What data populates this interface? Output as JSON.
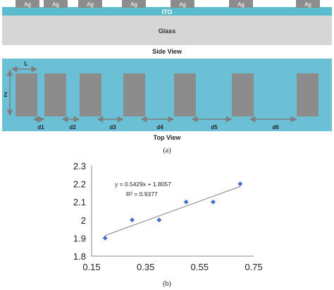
{
  "side_view": {
    "electrode_label": "Ag",
    "ito_label": "ITO",
    "glass_label": "Glass",
    "caption": "Side View",
    "colors": {
      "ito": "#5bbccd",
      "glass": "#d6d6d6",
      "electrode": "#8c8c8c"
    }
  },
  "top_view": {
    "width_label": "L",
    "height_label": "Z",
    "gap_labels": [
      "d1",
      "d2",
      "d3",
      "d4",
      "d5",
      "d6"
    ],
    "caption": "Top View",
    "colors": {
      "background": "#6cc0d6",
      "electrode": "#8c8c8c",
      "arrow": "#7f7f7f"
    }
  },
  "panel_a_label": "(a)",
  "panel_b_label": "(b)",
  "chart_data": {
    "type": "scatter",
    "title": "",
    "xlabel": "",
    "ylabel": "",
    "xlim": [
      0.15,
      0.75
    ],
    "ylim": [
      1.8,
      2.3
    ],
    "xticks": [
      "0.15",
      "0.35",
      "0.55",
      "0.75"
    ],
    "yticks": [
      "1.8",
      "1.9",
      "2",
      "2.1",
      "2.2",
      "2.3"
    ],
    "grid": false,
    "legend": "none",
    "series": [
      {
        "marker": "diamond",
        "color": "#4472c4",
        "x": [
          0.2,
          0.3,
          0.4,
          0.5,
          0.6,
          0.7
        ],
        "y": [
          1.9,
          2.0,
          2.0,
          2.1,
          2.1,
          2.2
        ]
      }
    ],
    "trendline": {
      "slope": 0.5429,
      "intercept": 1.8057,
      "color": "#7f7f7f",
      "equation_label": "y = 0.5429x + 1.8057",
      "r2_label": "R² = 0.9377"
    }
  }
}
